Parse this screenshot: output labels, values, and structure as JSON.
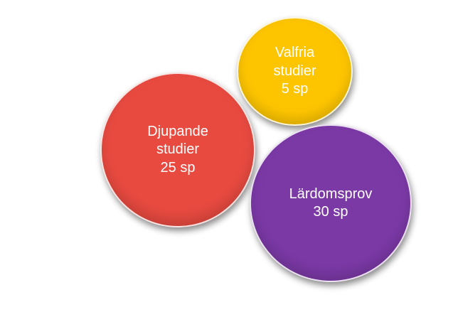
{
  "bubbles": [
    {
      "lines": [
        "Valfria",
        "studier",
        "5 sp"
      ],
      "color": "#FDC500"
    },
    {
      "lines": [
        "Djupande",
        "studier",
        "25 sp"
      ],
      "color": "#E84A40"
    },
    {
      "lines": [
        "Lärdomsprov",
        "30 sp"
      ],
      "color": "#7B39A6"
    }
  ]
}
